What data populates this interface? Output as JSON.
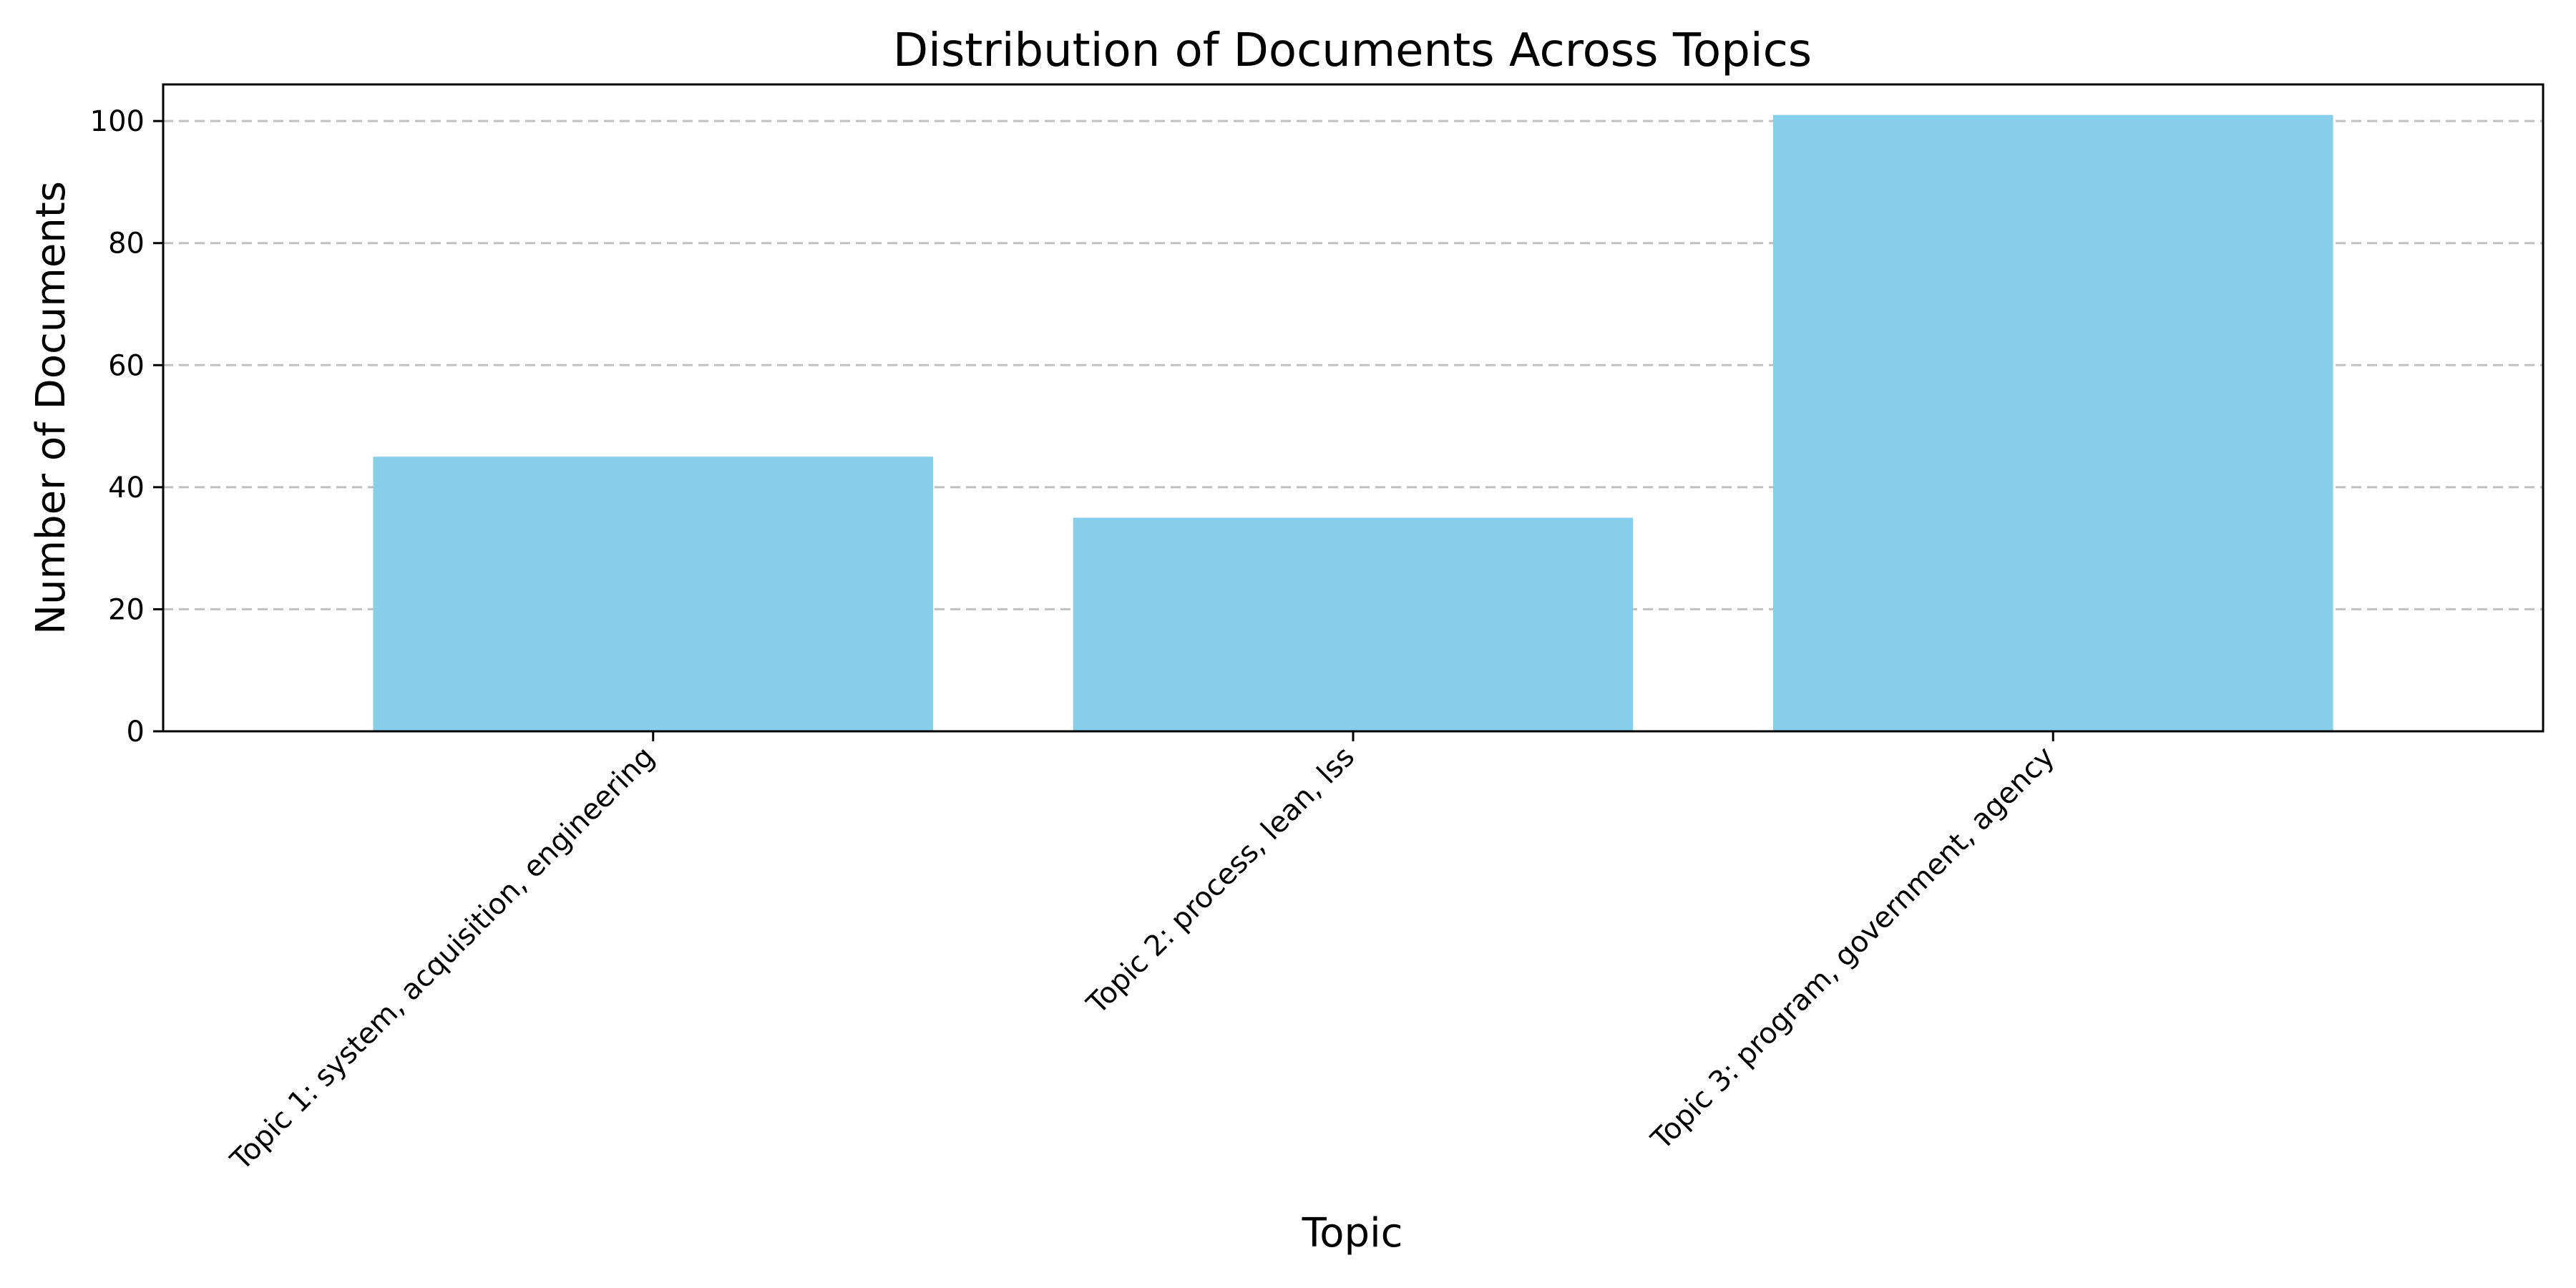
{
  "chart_data": {
    "type": "bar",
    "title": "Distribution of Documents Across Topics",
    "xlabel": "Topic",
    "ylabel": "Number of Documents",
    "categories": [
      "Topic 1: system, acquisition, engineering",
      "Topic 2: process, lean, lss",
      "Topic 3: program, government, agency"
    ],
    "values": [
      45,
      35,
      101
    ],
    "ylim": [
      0,
      106
    ],
    "yticks": [
      0,
      20,
      40,
      60,
      80,
      100
    ],
    "grid": "horizontal dashed",
    "legend": "none",
    "bar_color": "#87CEEB"
  }
}
